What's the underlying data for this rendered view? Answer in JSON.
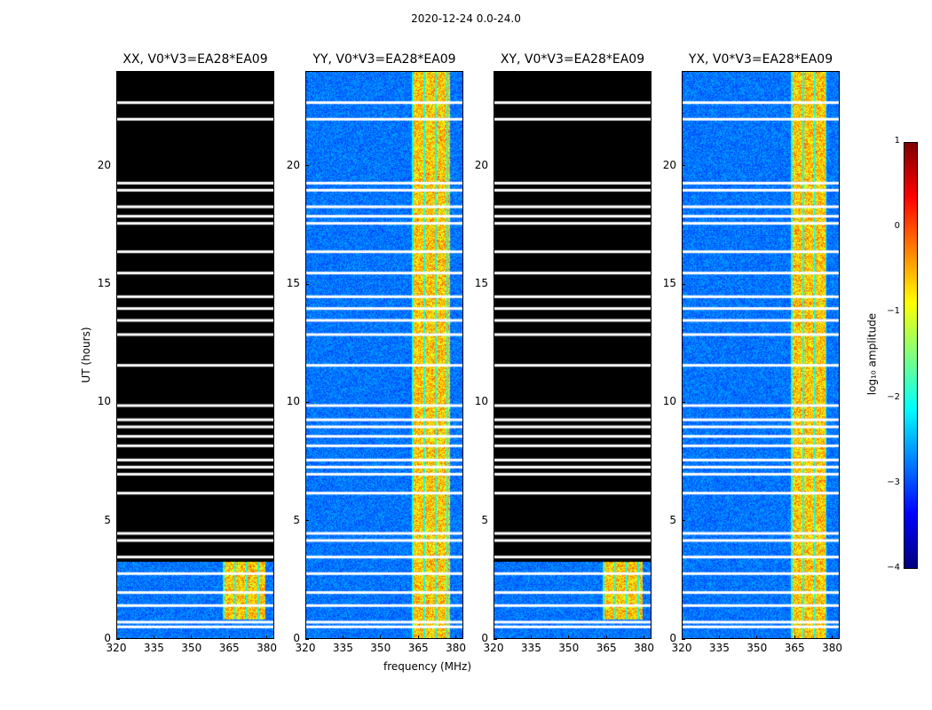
{
  "chart_data": {
    "type": "heatmap",
    "suptitle": "2020-12-24 0.0-24.0",
    "panels": [
      {
        "title": "XX, V0*V3=EA28*EA09",
        "pol": "XX",
        "active_freq_range": [
          362,
          379
        ],
        "active_time_range": [
          0.9,
          3.3
        ],
        "baseline_time_range": [
          0,
          3.3
        ]
      },
      {
        "title": "YY, V0*V3=EA28*EA09",
        "pol": "YY",
        "active_freq_range": [
          362,
          377
        ],
        "active_time_range": [
          0,
          24
        ],
        "baseline_time_range": [
          0,
          24
        ]
      },
      {
        "title": "XY, V0*V3=EA28*EA09",
        "pol": "XY",
        "active_freq_range": [
          363,
          379
        ],
        "active_time_range": [
          0.9,
          3.3
        ],
        "baseline_time_range": [
          0,
          3.3
        ]
      },
      {
        "title": "YX, V0*V3=EA28*EA09",
        "pol": "YX",
        "active_freq_range": [
          363,
          377
        ],
        "active_time_range": [
          0,
          24
        ],
        "baseline_time_range": [
          0,
          24
        ]
      }
    ],
    "xlabel": "frequency (MHz)",
    "ylabel": "UT (hours)",
    "xlim": [
      320,
      383
    ],
    "ylim": [
      0,
      24
    ],
    "xticks": [
      "320",
      "335",
      "350",
      "365",
      "380"
    ],
    "yticks": [
      "0",
      "5",
      "10",
      "15",
      "20"
    ],
    "colorbar": {
      "label": "log₁₀ amplitude",
      "range": [
        -4,
        1
      ],
      "ticks": [
        "1",
        "0",
        "−1",
        "−2",
        "−3",
        "−4"
      ],
      "colormap": "jet"
    },
    "flagged_times_hours": [
      0.55,
      0.75,
      1.45,
      2.0,
      2.8,
      3.5,
      4.2,
      4.5,
      6.2,
      7.0,
      7.3,
      7.6,
      8.2,
      8.6,
      9.0,
      9.3,
      9.9,
      11.6,
      12.9,
      13.5,
      14.0,
      14.5,
      15.5,
      16.4,
      17.6,
      17.9,
      18.3,
      19.0,
      19.3,
      22.0,
      22.7
    ]
  }
}
